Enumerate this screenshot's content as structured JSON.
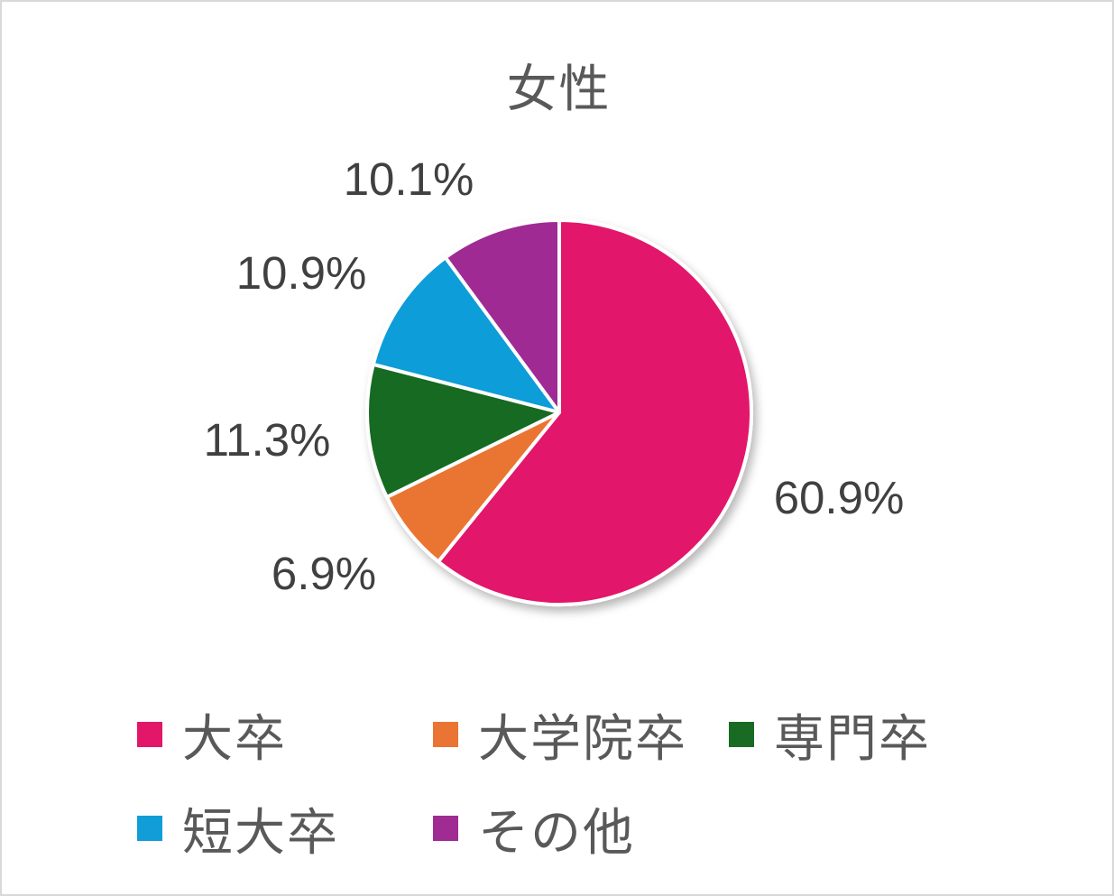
{
  "chart_data": {
    "type": "pie",
    "title": "女性",
    "categories": [
      "大卒",
      "大学院卒",
      "専門卒",
      "短大卒",
      "その他"
    ],
    "values": [
      60.9,
      6.9,
      11.3,
      10.9,
      10.1
    ],
    "labels": [
      "60.9%",
      "6.9%",
      "11.3%",
      "10.9%",
      "10.1%"
    ],
    "colors": [
      "#E2176A",
      "#EA7433",
      "#196B24",
      "#119DD8",
      "#A02B93"
    ],
    "start_angle": "12 o'clock",
    "direction": "clockwise",
    "legend_position": "bottom"
  }
}
